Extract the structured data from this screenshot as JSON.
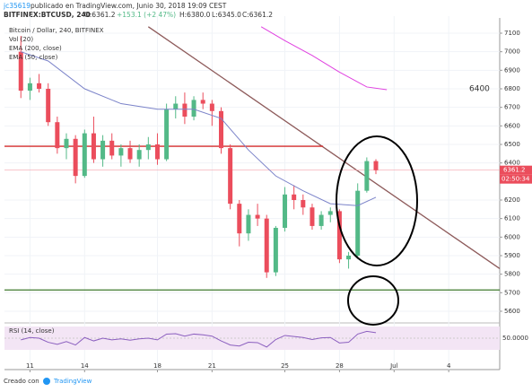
{
  "header": {
    "author": "jc35619",
    "published": "publicado en TradingView.com, Junio 30, 2018 19:09 CEST",
    "symbol": "BITFINEX:BTCUSD, 240",
    "open": "O:6361.2",
    "change": "+153.1 (+2.47%)",
    "high": "H:6380.0",
    "low": "L:6345.0",
    "close": "C:6361.2"
  },
  "legend": [
    "Bitcoin / Dollar, 240, BITFINEX",
    "Vol (20)",
    "EMA (200, close)",
    "EMA (50, close)"
  ],
  "footer": {
    "made_with": "Creado con",
    "brand": "TradingView"
  },
  "chart_data": {
    "type": "candlestick",
    "up_color": "#53b987",
    "down_color": "#eb4d5c",
    "xlim": [
      9.6,
      36.8
    ],
    "xticks": [
      11,
      14,
      18,
      21,
      25,
      28,
      {
        "value": 31,
        "label": "Jul"
      },
      {
        "value": 34,
        "label": "4"
      }
    ],
    "ylim": [
      5537,
      7192
    ],
    "yticks": [
      5600,
      5700,
      5800,
      5900,
      6000,
      6100,
      6200,
      6400,
      6500,
      6600,
      6700,
      6800,
      6900,
      7000,
      7100
    ],
    "x": [
      10.5,
      11,
      11.5,
      12,
      12.5,
      13,
      13.5,
      14,
      14.5,
      15,
      15.5,
      16,
      16.5,
      17,
      17.5,
      18,
      18.5,
      19,
      19.5,
      20,
      20.5,
      21,
      21.5,
      22,
      22.5,
      23,
      23.5,
      24,
      24.5,
      25,
      25.5,
      26,
      26.5,
      27,
      27.5,
      28,
      28.5,
      29,
      29.5,
      30
    ],
    "open": [
      7000,
      6790,
      6830,
      6800,
      6620,
      6480,
      6530,
      6330,
      6560,
      6420,
      6520,
      6440,
      6480,
      6420,
      6470,
      6500,
      6420,
      6690,
      6720,
      6650,
      6740,
      6720,
      6680,
      6480,
      6180,
      6020,
      6120,
      6100,
      5810,
      6050,
      6230,
      6200,
      6160,
      6060,
      6120,
      6140,
      5880,
      5900,
      6250,
      6410
    ],
    "high": [
      7085,
      6860,
      6880,
      6830,
      6650,
      6560,
      6550,
      6580,
      6650,
      6550,
      6560,
      6500,
      6520,
      6500,
      6540,
      6560,
      6720,
      6760,
      6780,
      6760,
      6780,
      6740,
      6700,
      6500,
      6200,
      6150,
      6180,
      6120,
      6060,
      6270,
      6280,
      6230,
      6180,
      6140,
      6160,
      6150,
      5920,
      6290,
      6430,
      6420
    ],
    "low": [
      6750,
      6740,
      6780,
      6600,
      6450,
      6420,
      6290,
      6320,
      6400,
      6380,
      6420,
      6380,
      6400,
      6380,
      6420,
      6390,
      6410,
      6640,
      6610,
      6630,
      6690,
      6600,
      6450,
      6150,
      5950,
      5980,
      6060,
      5780,
      5790,
      6030,
      6150,
      6120,
      6040,
      6040,
      6080,
      5860,
      5830,
      5890,
      6240,
      6340
    ],
    "close": [
      6790,
      6830,
      6800,
      6620,
      6480,
      6530,
      6330,
      6560,
      6420,
      6520,
      6440,
      6480,
      6420,
      6470,
      6500,
      6420,
      6690,
      6720,
      6650,
      6740,
      6720,
      6680,
      6480,
      6180,
      6020,
      6120,
      6100,
      5810,
      6050,
      6230,
      6200,
      6160,
      6060,
      6120,
      6140,
      5880,
      5900,
      6250,
      6410,
      6361.2
    ],
    "series": [
      {
        "name": "EMA (50, close)",
        "color": "#7b83c9",
        "x": [
          10.5,
          12,
          14,
          16,
          18,
          20,
          21.5,
          23,
          24.5,
          26,
          27.5,
          29,
          30
        ],
        "values": [
          7000,
          6950,
          6800,
          6720,
          6690,
          6690,
          6640,
          6470,
          6330,
          6250,
          6180,
          6170,
          6215
        ]
      },
      {
        "name": "EMA (200, close)",
        "color": "#e040e0",
        "x": [
          23.7,
          25,
          26.5,
          28,
          29.5,
          30.6
        ],
        "values": [
          7135,
          7060,
          6980,
          6890,
          6810,
          6795
        ]
      }
    ],
    "lines": [
      {
        "color": "#8d5a5a",
        "x": [
          17.5,
          36.8
        ],
        "values": [
          7135,
          5830
        ]
      },
      {
        "color": "#d42b2b",
        "x": [
          9.6,
          27.1
        ],
        "values": [
          6490,
          6490
        ]
      },
      {
        "color": "#3f7a2e",
        "x": [
          9.6,
          36.8
        ],
        "values": [
          5715,
          5715
        ]
      }
    ],
    "last_price": {
      "value": 6361.2,
      "label": "6361.2",
      "countdown": "02:50:34",
      "color": "#eb4d5c"
    },
    "annotation": {
      "text": "6400"
    },
    "rsi": {
      "label": "RSI (14, close)",
      "ylim": [
        0,
        100
      ],
      "mid": {
        "value": 50,
        "label": "50.0000"
      },
      "color": "#8b5fbf",
      "values": [
        45,
        52,
        50,
        38,
        32,
        40,
        30,
        52,
        42,
        50,
        45,
        48,
        44,
        48,
        50,
        45,
        62,
        63,
        56,
        62,
        60,
        56,
        42,
        30,
        27,
        38,
        37,
        24,
        46,
        58,
        55,
        52,
        46,
        51,
        52,
        36,
        38,
        62,
        70,
        66
      ]
    }
  }
}
